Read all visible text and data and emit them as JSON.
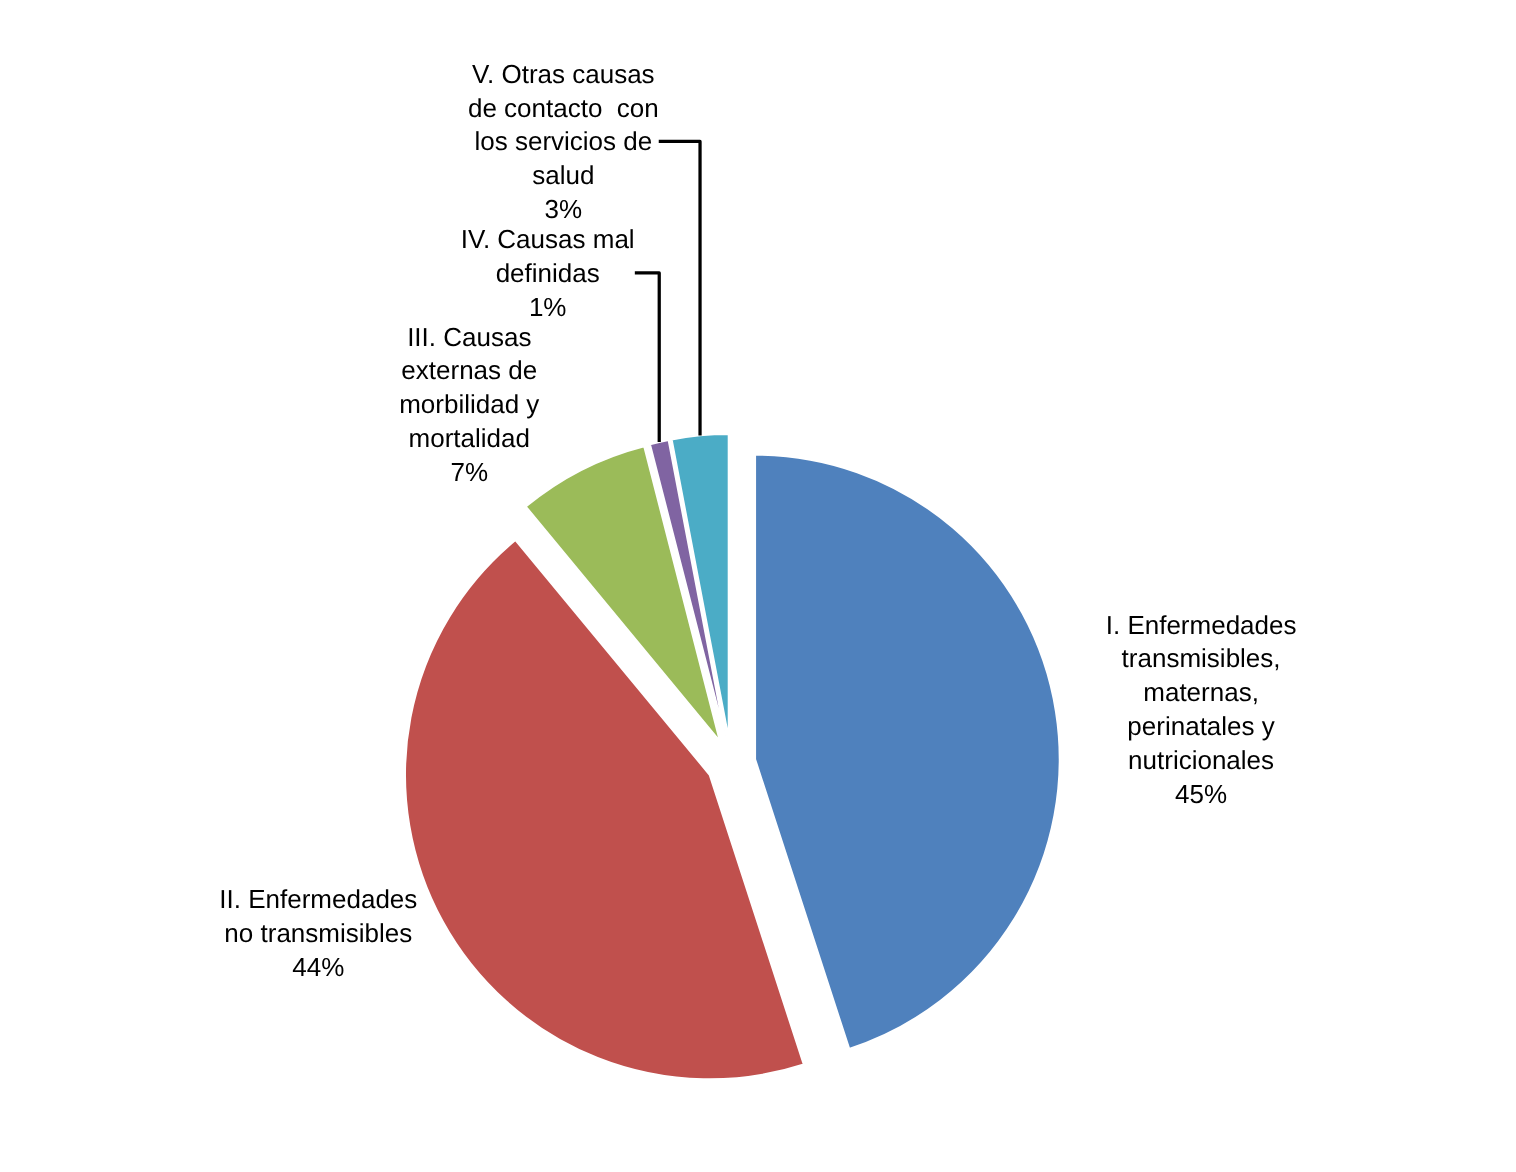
{
  "chart_data": {
    "type": "pie",
    "categories": [
      "I. Enfermedades transmisibles, maternas, perinatales y nutricionales",
      "II. Enfermedades no transmisibles",
      "III. Causas externas de morbilidad y mortalidad",
      "IV. Causas mal definidas",
      "V. Otras causas de contacto  con los servicios de salud"
    ],
    "values": [
      45,
      44,
      7,
      1,
      3
    ],
    "value_labels": [
      "45%",
      "44%",
      "7%",
      "1%",
      "3%"
    ],
    "colors": [
      "#4f81bd",
      "#c0504d",
      "#9bbb59",
      "#8064a2",
      "#4bacc6"
    ],
    "legend": false
  }
}
